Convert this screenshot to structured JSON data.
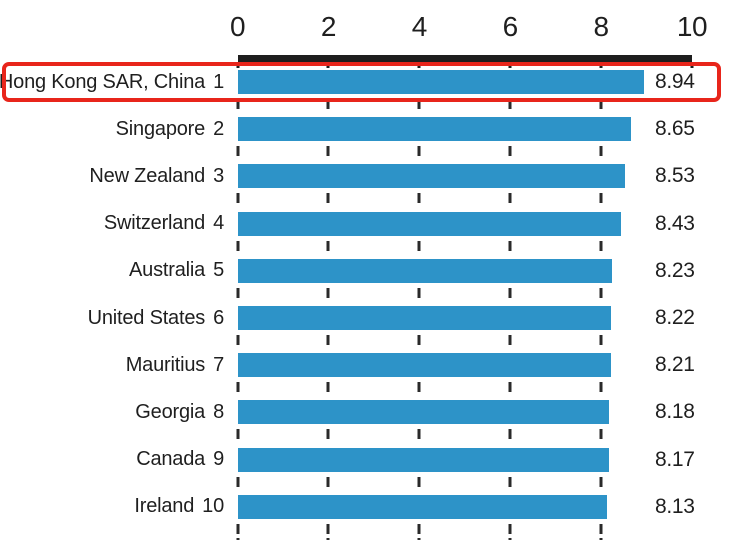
{
  "chart_data": {
    "type": "bar",
    "orientation": "horizontal",
    "title": "",
    "xlabel": "",
    "ylabel": "",
    "axis": {
      "position": "top",
      "min": 0,
      "max": 10,
      "ticks": [
        0,
        2,
        4,
        6,
        8,
        10
      ],
      "gridline_values": [
        0,
        2,
        4,
        6,
        8
      ],
      "grid_style": "dashed-vertical"
    },
    "legend": null,
    "rows": [
      {
        "label": "Hong Kong SAR, China",
        "rank": "1",
        "value": 8.94,
        "value_label": "8.94",
        "highlighted": true
      },
      {
        "label": "Singapore",
        "rank": "2",
        "value": 8.65,
        "value_label": "8.65",
        "highlighted": false
      },
      {
        "label": "New Zealand",
        "rank": "3",
        "value": 8.53,
        "value_label": "8.53",
        "highlighted": false
      },
      {
        "label": "Switzerland",
        "rank": "4",
        "value": 8.43,
        "value_label": "8.43",
        "highlighted": false
      },
      {
        "label": "Australia",
        "rank": "5",
        "value": 8.23,
        "value_label": "8.23",
        "highlighted": false
      },
      {
        "label": "United States",
        "rank": "6",
        "value": 8.22,
        "value_label": "8.22",
        "highlighted": false
      },
      {
        "label": "Mauritius",
        "rank": "7",
        "value": 8.21,
        "value_label": "8.21",
        "highlighted": false
      },
      {
        "label": "Georgia",
        "rank": "8",
        "value": 8.18,
        "value_label": "8.18",
        "highlighted": false
      },
      {
        "label": "Canada",
        "rank": "9",
        "value": 8.17,
        "value_label": "8.17",
        "highlighted": false
      },
      {
        "label": "Ireland",
        "rank": "10",
        "value": 8.13,
        "value_label": "8.13",
        "highlighted": false
      }
    ],
    "colors": {
      "bar": "#2d93c8",
      "axis_bar": "#1e1e1e",
      "text": "#1f1f1f",
      "gridline": "#2a2a2a",
      "highlight_border": "#e8251b",
      "background": "#ffffff"
    }
  }
}
